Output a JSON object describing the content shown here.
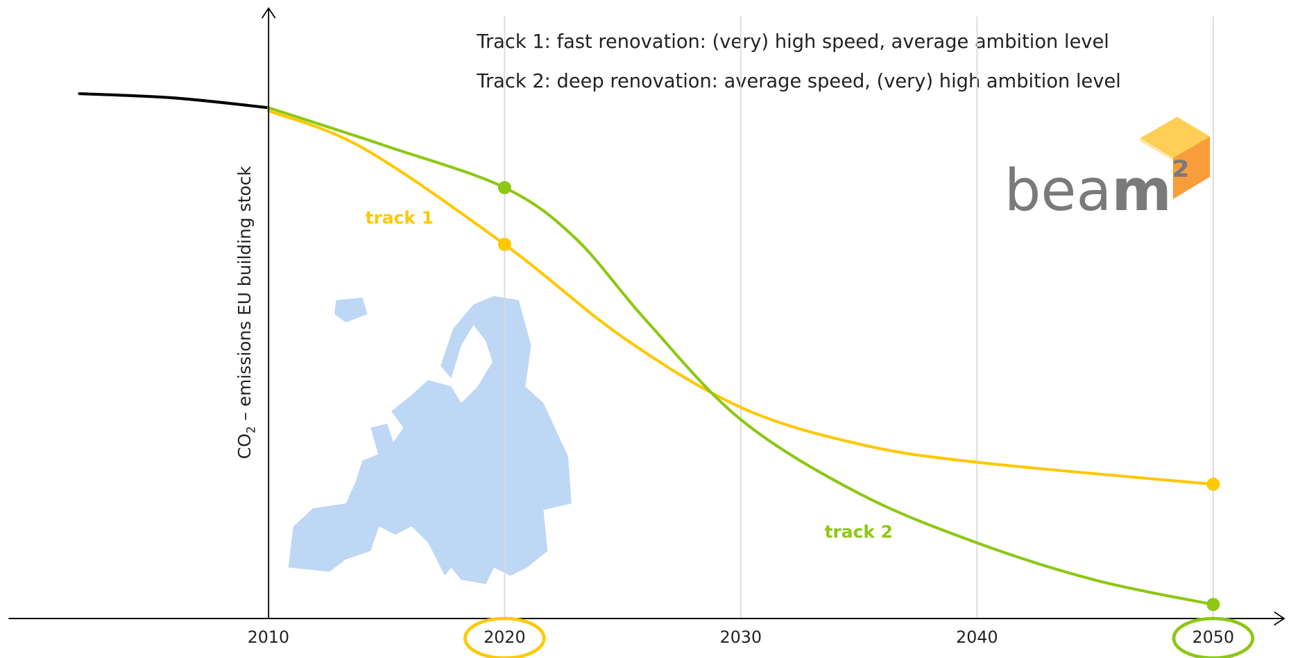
{
  "chart_data": {
    "type": "line",
    "annotations": [
      "Track 1: fast renovation:  (very) high speed, average ambition level",
      "Track 2: deep renovation: average speed, (very) high ambition level"
    ],
    "y_label": [
      "CO",
      "2",
      " – emissions EU building stock"
    ],
    "logo": [
      "bea",
      "m",
      "²"
    ],
    "xlim": [
      1999,
      2053
    ],
    "ylim": [
      0,
      100
    ],
    "xticks": [
      2010,
      2020,
      2030,
      2040,
      2050
    ],
    "grid": true,
    "xtick_highlights": [
      {
        "value": 2020,
        "color": "#ffc800"
      },
      {
        "value": 2050,
        "color": "#8cc814"
      }
    ],
    "series": [
      {
        "color": "#000000",
        "x": [
          2002,
          2006,
          2010
        ],
        "values": [
          86,
          85.3,
          83.7
        ],
        "markers": []
      },
      {
        "name": "track 1",
        "color": "#ffc800",
        "x": [
          2010,
          2014,
          2020,
          2025,
          2030,
          2035,
          2040,
          2050
        ],
        "values": [
          83.2,
          77.1,
          61.3,
          46.1,
          34.6,
          28.6,
          25.6,
          22.0
        ],
        "markers": [
          2,
          7
        ]
      },
      {
        "name": "track 2",
        "color": "#8cc814",
        "x": [
          2010,
          2015,
          2020,
          2023,
          2026,
          2030,
          2035,
          2040,
          2045,
          2050
        ],
        "values": [
          83.7,
          77.4,
          70.6,
          62.3,
          48.8,
          32.6,
          20.5,
          12.4,
          6.3,
          2.3
        ],
        "markers": [
          2,
          9
        ]
      }
    ]
  }
}
